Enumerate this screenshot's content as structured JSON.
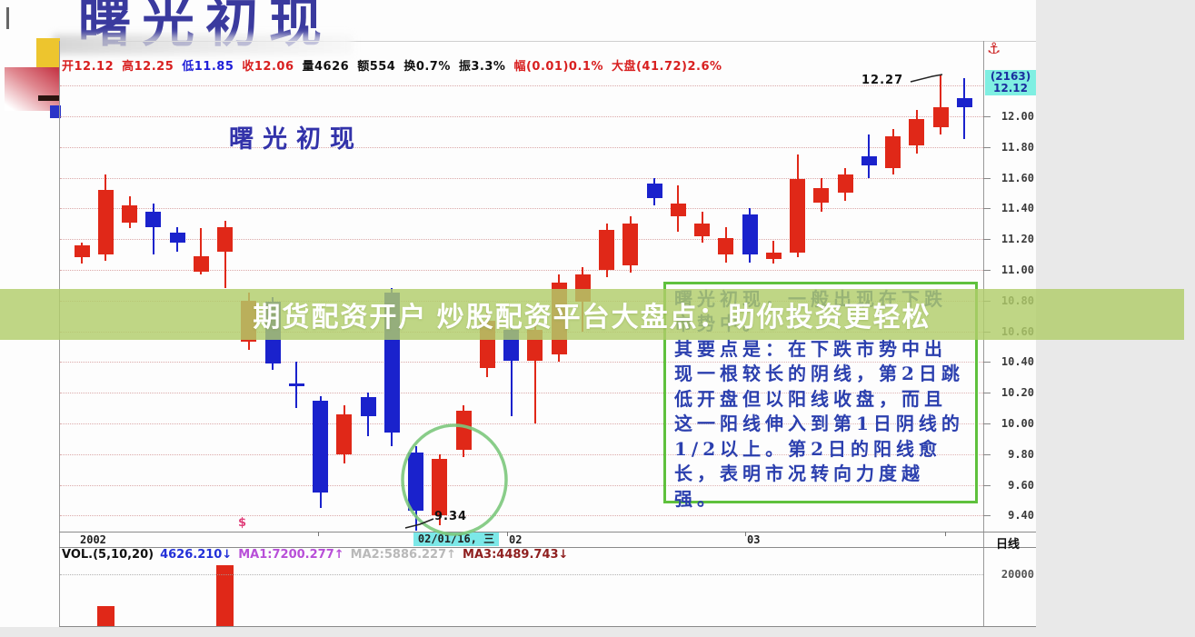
{
  "page": {
    "title": "曙光初现"
  },
  "icons": {
    "anchor": "⚓",
    "dollar": "$"
  },
  "info_bar": {
    "segments": [
      {
        "text": "开12.12",
        "color": "#d82020"
      },
      {
        "text": "高12.25",
        "color": "#d82020"
      },
      {
        "text": "低11.85",
        "color": "#2020d8"
      },
      {
        "text": "收12.06",
        "color": "#d82020"
      },
      {
        "text": "量4626",
        "color": "#111111"
      },
      {
        "text": "额554",
        "color": "#111111"
      },
      {
        "text": "换0.7%",
        "color": "#111111"
      },
      {
        "text": "振3.3%",
        "color": "#111111"
      },
      {
        "text": "幅(0.01)0.1%",
        "color": "#d82020"
      },
      {
        "text": "大盘(41.72)2.6%",
        "color": "#d82020"
      }
    ]
  },
  "banner": {
    "text": "期货配资开户 炒股配资平台大盘点：助你投资更轻松"
  },
  "chart_annotation": "曙光初现",
  "axis": {
    "badge_line1": "(2163)",
    "badge_line2": "12.12",
    "period_label": "日线",
    "volume_tick_label": "20000"
  },
  "date_axis": {
    "year": "2002",
    "selected": "02/01/16, 三",
    "feb": "02",
    "mar": "03"
  },
  "labels": {
    "high_label": "12.27",
    "low_label": "9.34"
  },
  "vol_line": {
    "segments": [
      {
        "text": "VOL.(5,10,20)",
        "color": "#111111"
      },
      {
        "text": "4626.210↓",
        "color": "#2230d8"
      },
      {
        "text": "MA1:7200.277↑",
        "color": "#b84fd8"
      },
      {
        "text": "MA2:5886.227↑",
        "color": "#b9b9b9"
      },
      {
        "text": "MA3:4489.743↓",
        "color": "#8f1f1f"
      }
    ]
  },
  "note_box": {
    "lines": [
      "曙光初现，一般出现在下跌",
      "市势中。",
      "其要点是：在下跌市势中出",
      "现一根较长的阴线，第2日跳",
      "低开盘但以阳线收盘，而且",
      "这一阳线伸入到第1日阴线的",
      "1/2以上。第2日的阳线愈",
      "长，表明市况转向力度越",
      "强。"
    ]
  },
  "colors": {
    "up": "#e02818",
    "down": "#1a22cc",
    "grid": "#c87878"
  },
  "chart_data": {
    "type": "candlestick",
    "title": "曙光初现",
    "period": "日线",
    "ylim": [
      9.3,
      12.3
    ],
    "y_axis_ticks": [
      12.0,
      11.8,
      11.6,
      11.4,
      11.2,
      11.0,
      10.8,
      10.6,
      10.4,
      10.2,
      10.0,
      9.8,
      9.6,
      9.4
    ],
    "extra_gridlines": [
      12.2
    ],
    "x_start_year": "2002",
    "highlighted_date": "02/01/16, 三",
    "high_annotation": {
      "price": 12.27,
      "candle_index": 36
    },
    "low_annotation": {
      "price": 9.34,
      "candle_index": 15
    },
    "candles": [
      {
        "t": "up",
        "o": 11.08,
        "c": 11.16,
        "h": 11.18,
        "l": 11.04
      },
      {
        "t": "up",
        "o": 11.1,
        "c": 11.52,
        "h": 11.62,
        "l": 11.06
      },
      {
        "t": "up",
        "o": 11.31,
        "c": 11.42,
        "h": 11.48,
        "l": 11.27
      },
      {
        "t": "down",
        "o": 11.38,
        "c": 11.28,
        "h": 11.43,
        "l": 11.1
      },
      {
        "t": "down",
        "o": 11.24,
        "c": 11.18,
        "h": 11.28,
        "l": 11.12
      },
      {
        "t": "up",
        "o": 10.99,
        "c": 11.09,
        "h": 11.27,
        "l": 10.97
      },
      {
        "t": "up",
        "o": 11.12,
        "c": 11.28,
        "h": 11.32,
        "l": 10.88
      },
      {
        "t": "up",
        "o": 10.53,
        "c": 10.8,
        "h": 10.85,
        "l": 10.48
      },
      {
        "t": "down",
        "o": 10.79,
        "c": 10.39,
        "h": 10.82,
        "l": 10.35
      },
      {
        "t": "down",
        "o": 10.26,
        "c": 10.24,
        "h": 10.4,
        "l": 10.1
      },
      {
        "t": "down",
        "o": 10.15,
        "c": 9.55,
        "h": 10.18,
        "l": 9.45
      },
      {
        "t": "up",
        "o": 9.8,
        "c": 10.06,
        "h": 10.12,
        "l": 9.74
      },
      {
        "t": "down",
        "o": 10.17,
        "c": 10.05,
        "h": 10.2,
        "l": 9.92
      },
      {
        "t": "down",
        "o": 10.85,
        "c": 9.94,
        "h": 10.88,
        "l": 9.85
      },
      {
        "t": "down",
        "o": 9.81,
        "c": 9.43,
        "h": 9.85,
        "l": 9.3
      },
      {
        "t": "up",
        "o": 9.4,
        "c": 9.77,
        "h": 9.8,
        "l": 9.34
      },
      {
        "t": "up",
        "o": 9.83,
        "c": 10.08,
        "h": 10.12,
        "l": 9.78
      },
      {
        "t": "up",
        "o": 10.36,
        "c": 10.67,
        "h": 10.72,
        "l": 10.3
      },
      {
        "t": "down",
        "o": 10.61,
        "c": 10.41,
        "h": 10.65,
        "l": 10.05
      },
      {
        "t": "up",
        "o": 10.41,
        "c": 10.61,
        "h": 10.66,
        "l": 10.0
      },
      {
        "t": "up",
        "o": 10.45,
        "c": 10.92,
        "h": 10.97,
        "l": 10.4
      },
      {
        "t": "up",
        "o": 10.79,
        "c": 10.97,
        "h": 11.02,
        "l": 10.6
      },
      {
        "t": "up",
        "o": 11.0,
        "c": 11.26,
        "h": 11.3,
        "l": 10.95
      },
      {
        "t": "up",
        "o": 11.03,
        "c": 11.3,
        "h": 11.35,
        "l": 10.98
      },
      {
        "t": "down",
        "o": 11.56,
        "c": 11.47,
        "h": 11.6,
        "l": 11.42
      },
      {
        "t": "up",
        "o": 11.35,
        "c": 11.43,
        "h": 11.55,
        "l": 11.25
      },
      {
        "t": "up",
        "o": 11.22,
        "c": 11.3,
        "h": 11.38,
        "l": 11.18
      },
      {
        "t": "up",
        "o": 11.1,
        "c": 11.21,
        "h": 11.28,
        "l": 11.05
      },
      {
        "t": "down",
        "o": 11.36,
        "c": 11.1,
        "h": 11.4,
        "l": 11.05
      },
      {
        "t": "up",
        "o": 11.07,
        "c": 11.11,
        "h": 11.19,
        "l": 11.04
      },
      {
        "t": "up",
        "o": 11.11,
        "c": 11.59,
        "h": 11.75,
        "l": 11.08
      },
      {
        "t": "up",
        "o": 11.44,
        "c": 11.53,
        "h": 11.6,
        "l": 11.38
      },
      {
        "t": "up",
        "o": 11.5,
        "c": 11.62,
        "h": 11.66,
        "l": 11.45
      },
      {
        "t": "down",
        "o": 11.74,
        "c": 11.68,
        "h": 11.88,
        "l": 11.6
      },
      {
        "t": "up",
        "o": 11.66,
        "c": 11.87,
        "h": 11.92,
        "l": 11.62
      },
      {
        "t": "up",
        "o": 11.81,
        "c": 11.98,
        "h": 12.04,
        "l": 11.76
      },
      {
        "t": "up",
        "o": 11.93,
        "c": 12.06,
        "h": 12.27,
        "l": 11.88
      },
      {
        "t": "down",
        "o": 12.12,
        "c": 12.06,
        "h": 12.25,
        "l": 11.85
      }
    ],
    "volume": {
      "axis_tick": 20000,
      "bars": [
        {
          "candle_index": 1,
          "value": 7600
        },
        {
          "candle_index": 6,
          "value": 23400
        }
      ]
    }
  }
}
